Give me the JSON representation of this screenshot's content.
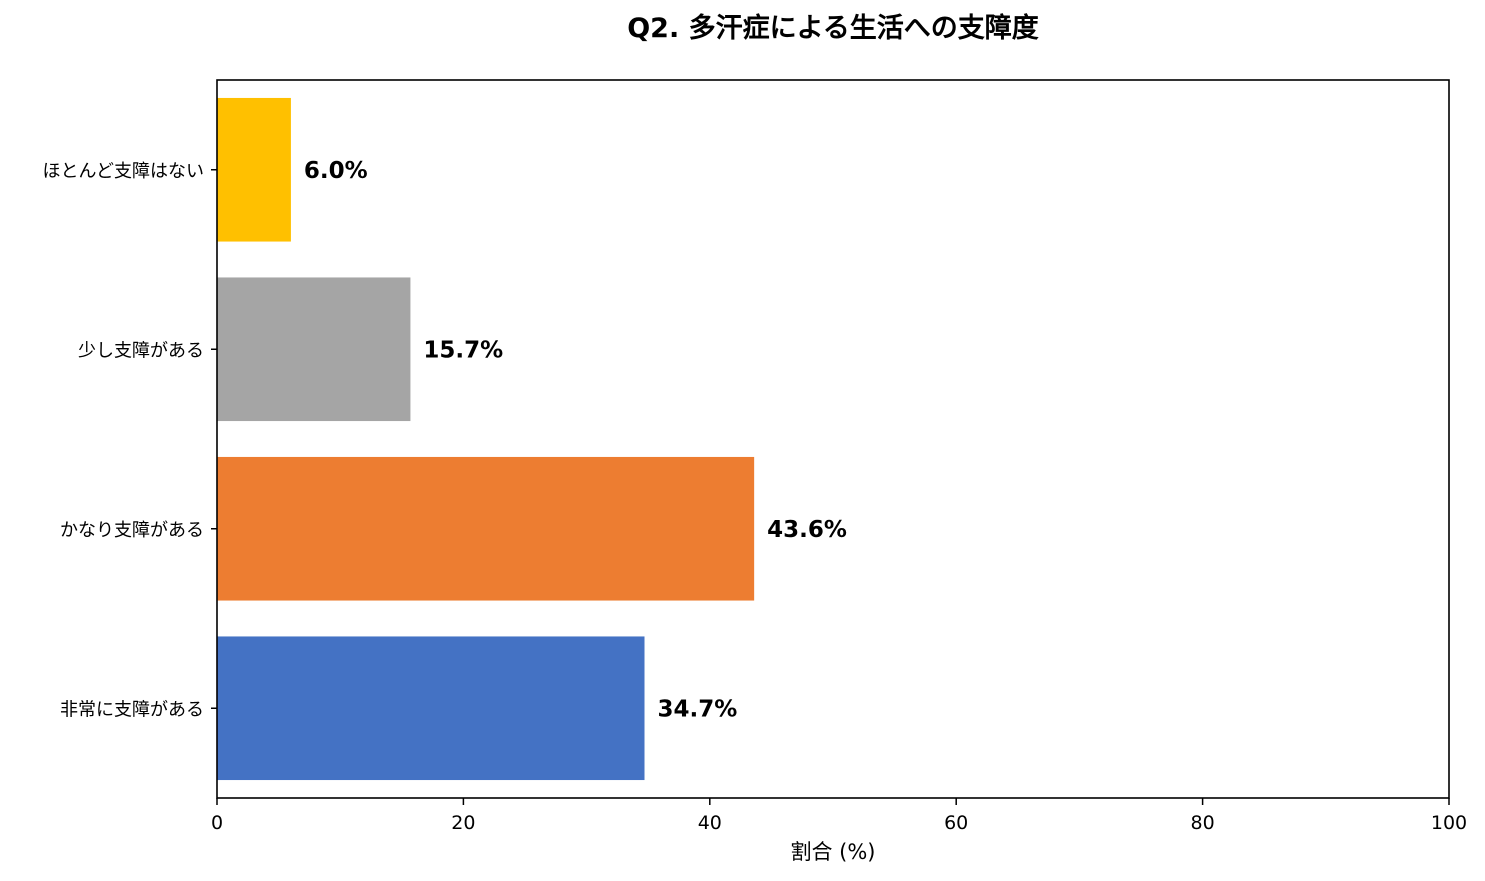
{
  "chart_data": {
    "type": "bar",
    "orientation": "horizontal",
    "title": "Q2. 多汗症による生活への支障度",
    "xlabel": "割合 (%)",
    "ylabel": "",
    "xlim": [
      0,
      100
    ],
    "xticks": [
      "0",
      "20",
      "40",
      "60",
      "80",
      "100"
    ],
    "categories": [
      "ほとんど支障はない",
      "少し支障がある",
      "かなり支障がある",
      "非常に支障がある"
    ],
    "values": [
      6.0,
      15.7,
      43.6,
      34.7
    ],
    "data_labels": [
      "6.0%",
      "15.7%",
      "43.6%",
      "34.7%"
    ],
    "colors": [
      "#FFC000",
      "#A5A5A5",
      "#ED7D31",
      "#4472C4"
    ],
    "grid": false,
    "legend": "none"
  }
}
